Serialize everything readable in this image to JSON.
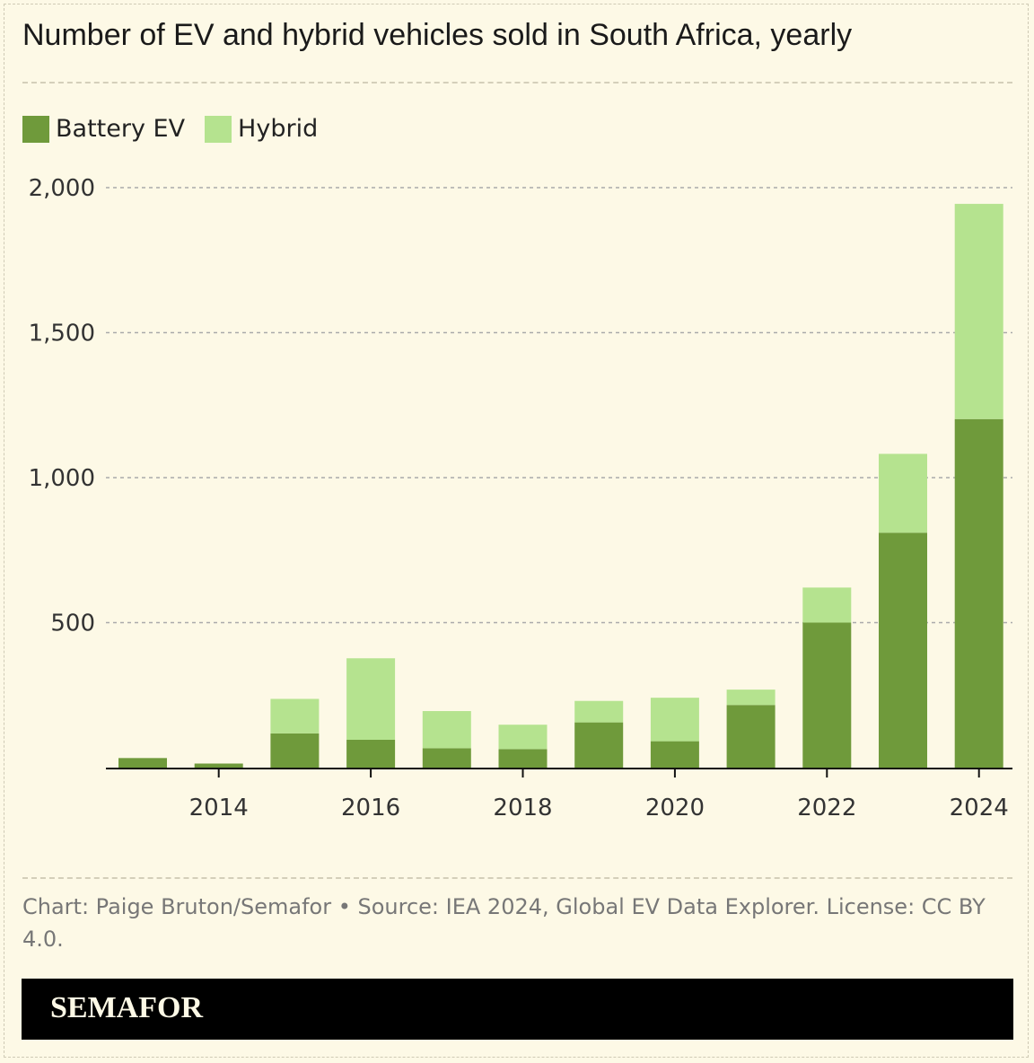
{
  "chart_data": {
    "type": "bar",
    "stacked": true,
    "title": "Number of EV and hybrid vehicles sold in South Africa, yearly",
    "categories": [
      2013,
      2014,
      2015,
      2016,
      2017,
      2018,
      2019,
      2020,
      2021,
      2022,
      2023,
      2024
    ],
    "x_tick_labels": [
      "2014",
      "2016",
      "2018",
      "2020",
      "2022",
      "2024"
    ],
    "y_tick_labels": [
      "2,000",
      "1,500",
      "1,000",
      "500"
    ],
    "ylim": [
      0,
      2000
    ],
    "y_ticks": [
      500,
      1000,
      1500,
      2000
    ],
    "grid": true,
    "legend_position": "top-left",
    "series": [
      {
        "name": "Battery EV",
        "color": "#6f9a3b",
        "values": [
          33,
          14,
          118,
          96,
          67,
          64,
          156,
          91,
          216,
          500,
          810,
          1202
        ]
      },
      {
        "name": "Hybrid",
        "color": "#b5e38f",
        "values": [
          0,
          0,
          119,
          281,
          128,
          84,
          74,
          150,
          53,
          121,
          272,
          742
        ]
      }
    ]
  },
  "source": "Chart: Paige Bruton/Semafor • Source: IEA 2024, Global EV Data Explorer. License: CC BY 4.0.",
  "brand": "SEMAFOR"
}
